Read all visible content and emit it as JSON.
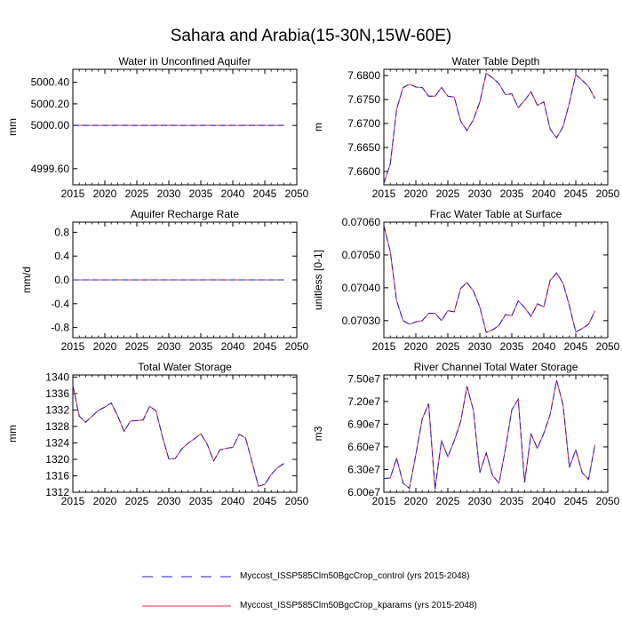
{
  "title": "Sahara and Arabia(15-30N,15W-60E)",
  "legend": [
    {
      "label": "Myccost_ISSP585Clm50BgcCrop_control (yrs 2015-2048)",
      "color": "#2020c0",
      "dash": "dashed"
    },
    {
      "label": "Myccost_ISSP585Clm50BgcCrop_kparams (yrs 2015-2048)",
      "color": "#e0304a",
      "dash": "solid"
    }
  ],
  "chart_data": [
    {
      "type": "line",
      "title": "Water in Unconfined Aquifer",
      "xlabel": "",
      "ylabel": "mm",
      "xlim": [
        2015,
        2050
      ],
      "ylim": [
        4999.45,
        5000.52
      ],
      "xticks": [
        2015,
        2020,
        2025,
        2030,
        2035,
        2040,
        2045,
        2050
      ],
      "yticks": [
        4999.6,
        5000.0,
        5000.2,
        5000.4
      ],
      "ytick_labels": [
        "4999.60",
        "5000.00",
        "5000.20",
        "5000.40"
      ],
      "x": [
        2015,
        2016,
        2017,
        2018,
        2019,
        2020,
        2021,
        2022,
        2023,
        2024,
        2025,
        2026,
        2027,
        2028,
        2029,
        2030,
        2031,
        2032,
        2033,
        2034,
        2035,
        2036,
        2037,
        2038,
        2039,
        2040,
        2041,
        2042,
        2043,
        2044,
        2045,
        2046,
        2047,
        2048
      ],
      "series": [
        {
          "values": [
            5000,
            5000,
            5000,
            5000,
            5000,
            5000,
            5000,
            5000,
            5000,
            5000,
            5000,
            5000,
            5000,
            5000,
            5000,
            5000,
            5000,
            5000,
            5000,
            5000,
            5000,
            5000,
            5000,
            5000,
            5000,
            5000,
            5000,
            5000,
            5000,
            5000,
            5000,
            5000,
            5000,
            5000
          ]
        }
      ]
    },
    {
      "type": "line",
      "title": "Water Table Depth",
      "xlabel": "",
      "ylabel": "m",
      "xlim": [
        2015,
        2050
      ],
      "ylim": [
        7.6572,
        7.6813
      ],
      "xticks": [
        2015,
        2020,
        2025,
        2030,
        2035,
        2040,
        2045,
        2050
      ],
      "yticks": [
        7.66,
        7.665,
        7.67,
        7.675,
        7.68
      ],
      "ytick_labels": [
        "7.6600",
        "7.6650",
        "7.6700",
        "7.6750",
        "7.6800"
      ],
      "x": [
        2015,
        2016,
        2017,
        2018,
        2019,
        2020,
        2021,
        2022,
        2023,
        2024,
        2025,
        2026,
        2027,
        2028,
        2029,
        2030,
        2031,
        2032,
        2033,
        2034,
        2035,
        2036,
        2037,
        2038,
        2039,
        2040,
        2041,
        2042,
        2043,
        2044,
        2045,
        2046,
        2047,
        2048
      ],
      "series": [
        {
          "values": [
            7.6575,
            7.6615,
            7.673,
            7.6775,
            7.6782,
            7.6776,
            7.6775,
            7.6757,
            7.6757,
            7.6775,
            7.6757,
            7.6755,
            7.6705,
            7.6685,
            7.6708,
            7.6745,
            7.6805,
            7.6795,
            7.6783,
            7.676,
            7.6762,
            7.6733,
            7.6748,
            7.6766,
            7.6738,
            7.6745,
            7.6688,
            7.667,
            7.6693,
            7.6743,
            7.6802,
            7.679,
            7.6777,
            7.6752
          ]
        }
      ]
    },
    {
      "type": "line",
      "title": "Aquifer Recharge Rate",
      "xlabel": "",
      "ylabel": "mm/d",
      "xlim": [
        2015,
        2050
      ],
      "ylim": [
        -0.97,
        0.97
      ],
      "xticks": [
        2015,
        2020,
        2025,
        2030,
        2035,
        2040,
        2045,
        2050
      ],
      "yticks": [
        -0.8,
        -0.4,
        0.0,
        0.4,
        0.8
      ],
      "ytick_labels": [
        "-0.8",
        "-0.4",
        "0.0",
        "0.4",
        "0.8"
      ],
      "x": [
        2015,
        2016,
        2017,
        2018,
        2019,
        2020,
        2021,
        2022,
        2023,
        2024,
        2025,
        2026,
        2027,
        2028,
        2029,
        2030,
        2031,
        2032,
        2033,
        2034,
        2035,
        2036,
        2037,
        2038,
        2039,
        2040,
        2041,
        2042,
        2043,
        2044,
        2045,
        2046,
        2047,
        2048
      ],
      "series": [
        {
          "values": [
            0,
            0,
            0,
            0,
            0,
            0,
            0,
            0,
            0,
            0,
            0,
            0,
            0,
            0,
            0,
            0,
            0,
            0,
            0,
            0,
            0,
            0,
            0,
            0,
            0,
            0,
            0,
            0,
            0,
            0,
            0,
            0,
            0,
            0
          ]
        }
      ]
    },
    {
      "type": "line",
      "title": "Frac Water Table at Surface",
      "xlabel": "",
      "ylabel": "unitless [0-1]",
      "xlim": [
        2015,
        2050
      ],
      "ylim": [
        0.070248,
        0.0706
      ],
      "xticks": [
        2015,
        2020,
        2025,
        2030,
        2035,
        2040,
        2045,
        2050
      ],
      "yticks": [
        0.0703,
        0.0704,
        0.0705,
        0.0706
      ],
      "ytick_labels": [
        "0.07030",
        "0.07040",
        "0.07050",
        "0.07060"
      ],
      "x": [
        2015,
        2016,
        2017,
        2018,
        2019,
        2020,
        2021,
        2022,
        2023,
        2024,
        2025,
        2026,
        2027,
        2028,
        2029,
        2030,
        2031,
        2032,
        2033,
        2034,
        2035,
        2036,
        2037,
        2038,
        2039,
        2040,
        2041,
        2042,
        2043,
        2044,
        2045,
        2046,
        2047,
        2048
      ],
      "series": [
        {
          "values": [
            0.07059,
            0.07051,
            0.07036,
            0.0703,
            0.070289,
            0.070296,
            0.0703,
            0.070322,
            0.070322,
            0.0703,
            0.07033,
            0.070327,
            0.070398,
            0.070416,
            0.07039,
            0.070341,
            0.070264,
            0.070272,
            0.070285,
            0.070318,
            0.070315,
            0.07036,
            0.07034,
            0.070313,
            0.070351,
            0.070342,
            0.070423,
            0.070445,
            0.070414,
            0.070345,
            0.070265,
            0.070276,
            0.070289,
            0.07033
          ]
        }
      ]
    },
    {
      "type": "line",
      "title": "Total Water Storage",
      "xlabel": "",
      "ylabel": "mm",
      "xlim": [
        2015,
        2050
      ],
      "ylim": [
        1312,
        1340.5
      ],
      "xticks": [
        2015,
        2020,
        2025,
        2030,
        2035,
        2040,
        2045,
        2050
      ],
      "yticks": [
        1312,
        1316,
        1320,
        1324,
        1328,
        1332,
        1336,
        1340
      ],
      "ytick_labels": [
        "1312",
        "1316",
        "1320",
        "1324",
        "1328",
        "1332",
        "1336",
        "1340"
      ],
      "x": [
        2015,
        2016,
        2017,
        2018,
        2019,
        2020,
        2021,
        2022,
        2023,
        2024,
        2025,
        2026,
        2027,
        2028,
        2029,
        2030,
        2031,
        2032,
        2033,
        2034,
        2035,
        2036,
        2037,
        2038,
        2039,
        2040,
        2041,
        2042,
        2043,
        2044,
        2045,
        2046,
        2047,
        2048
      ],
      "series": [
        {
          "values": [
            1338.0,
            1330.5,
            1329.0,
            1330.5,
            1331.9,
            1332.7,
            1333.7,
            1330.6,
            1326.8,
            1329.3,
            1329.4,
            1329.6,
            1332.9,
            1331.8,
            1325.5,
            1320.1,
            1320.2,
            1322.5,
            1323.9,
            1325.0,
            1326.2,
            1323.7,
            1319.6,
            1322.3,
            1322.7,
            1322.9,
            1326.1,
            1325.2,
            1319.4,
            1313.5,
            1313.9,
            1316.3,
            1318.0,
            1319.0
          ]
        }
      ]
    },
    {
      "type": "line",
      "title": "River Channel Total Water Storage",
      "xlabel": "",
      "ylabel": "m3",
      "xlim": [
        2015,
        2050
      ],
      "ylim": [
        60000000.0,
        75500000.0
      ],
      "xticks": [
        2015,
        2020,
        2025,
        2030,
        2035,
        2040,
        2045,
        2050
      ],
      "yticks": [
        60000000.0,
        63000000.0,
        66000000.0,
        69000000.0,
        72000000.0,
        75000000.0
      ],
      "ytick_labels": [
        "6.00e7",
        "6.30e7",
        "6.60e7",
        "6.90e7",
        "7.20e7",
        "7.50e7"
      ],
      "x": [
        2015,
        2016,
        2017,
        2018,
        2019,
        2020,
        2021,
        2022,
        2023,
        2024,
        2025,
        2026,
        2027,
        2028,
        2029,
        2030,
        2031,
        2032,
        2033,
        2034,
        2035,
        2036,
        2037,
        2038,
        2039,
        2040,
        2041,
        2042,
        2043,
        2044,
        2045,
        2046,
        2047,
        2048
      ],
      "series": [
        {
          "values": [
            61800000.0,
            61900000.0,
            64500000.0,
            61200000.0,
            60500000.0,
            65000000.0,
            69700000.0,
            71700000.0,
            60400000.0,
            66800000.0,
            64700000.0,
            66800000.0,
            69300000.0,
            74000000.0,
            70800000.0,
            62600000.0,
            65200000.0,
            62200000.0,
            61200000.0,
            65700000.0,
            70900000.0,
            72300000.0,
            61300000.0,
            67700000.0,
            65800000.0,
            67800000.0,
            70300000.0,
            74800000.0,
            71600000.0,
            63300000.0,
            65600000.0,
            62600000.0,
            61700000.0,
            66300000.0
          ]
        }
      ]
    }
  ]
}
